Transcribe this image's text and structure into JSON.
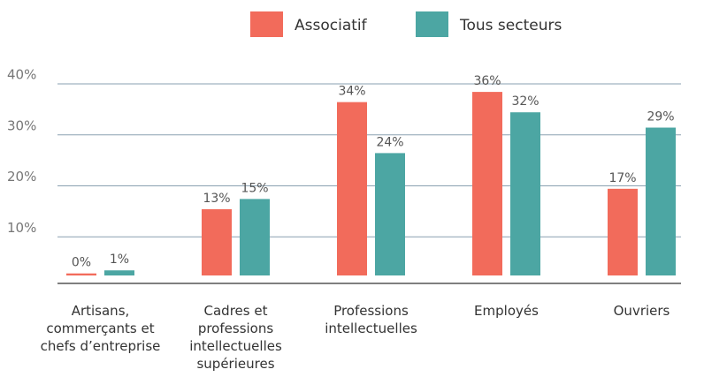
{
  "chart_data": {
    "type": "bar",
    "categories": [
      "Artisans, commerçants et chefs d’entreprise",
      "Cadres et professions intellectuelles supérieures",
      "Professions intellectuelles",
      "Employés",
      "Ouvriers"
    ],
    "series": [
      {
        "name": "Associatif",
        "color": "#f26b5b",
        "values": [
          0.4,
          13,
          34,
          36,
          17
        ],
        "value_labels": [
          "0%",
          "13%",
          "34%",
          "36%",
          "17%"
        ]
      },
      {
        "name": "Tous secteurs",
        "color": "#4ca6a3",
        "values": [
          1,
          15,
          24,
          32,
          29
        ],
        "value_labels": [
          "1%",
          "15%",
          "24%",
          "32%",
          "29%"
        ]
      }
    ],
    "ylim": [
      0,
      40
    ],
    "yticks": [
      {
        "value": 10,
        "label": "10%"
      },
      {
        "value": 20,
        "label": "20%"
      },
      {
        "value": 30,
        "label": "30%"
      },
      {
        "value": 40,
        "label": "40%"
      }
    ],
    "grid": true,
    "legend": "top"
  }
}
